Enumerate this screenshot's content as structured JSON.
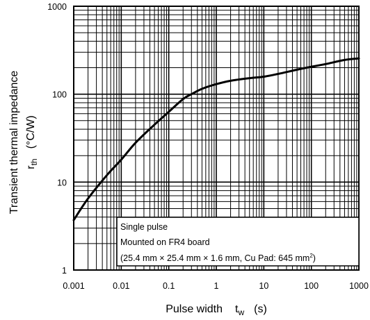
{
  "chart_data": {
    "type": "line",
    "x_scale": "log",
    "y_scale": "log",
    "xlim": [
      0.001,
      1000
    ],
    "ylim": [
      1,
      1000
    ],
    "x_ticks": [
      "0.001",
      "0.01",
      "0.1",
      "1",
      "10",
      "100",
      "1000"
    ],
    "y_ticks": [
      "1",
      "10",
      "100",
      "1000"
    ],
    "xlabel": {
      "text": "Pulse width",
      "symbol": "t",
      "sub": "w",
      "unit": "(s)"
    },
    "ylabel": {
      "text": "Transient thermal impedance",
      "symbol": "r",
      "sub": "th",
      "unit": "(°C/W)"
    },
    "grid": true,
    "series": [
      {
        "x": [
          0.001,
          0.002,
          0.005,
          0.01,
          0.02,
          0.05,
          0.1,
          0.2,
          0.3,
          0.5,
          1,
          2,
          5,
          10,
          20,
          50,
          100,
          200,
          500,
          1000
        ],
        "y": [
          3.7,
          6.5,
          12,
          18,
          28,
          45,
          63,
          88,
          100,
          115,
          130,
          142,
          152,
          158,
          170,
          190,
          205,
          220,
          245,
          255
        ]
      }
    ],
    "annotations": [
      "Single pulse",
      "Mounted on FR4 board"
    ],
    "annotation_dims": {
      "open": "(25.4 mm × 25.4 mm × 1.6 mm, Cu Pad: 645 mm",
      "sup": "2",
      "close": ")"
    }
  }
}
